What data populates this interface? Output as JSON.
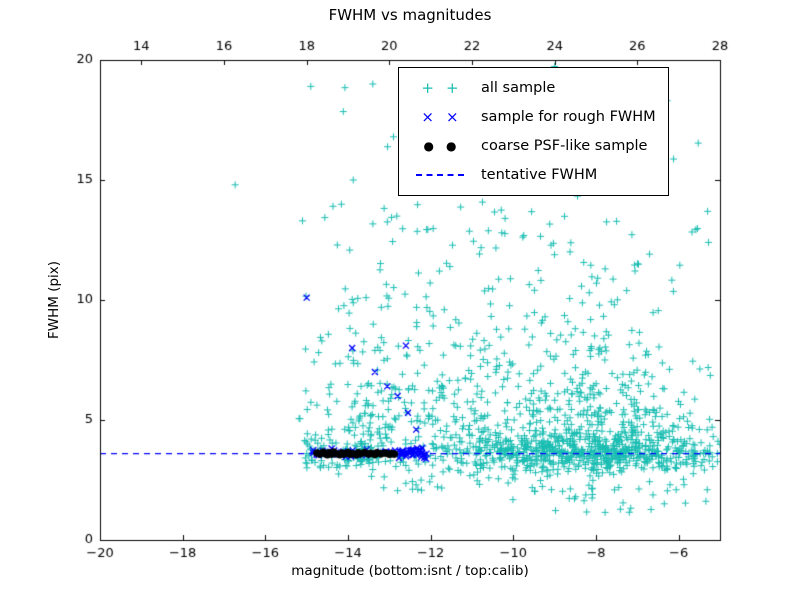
{
  "title": "FWHM vs magnitudes",
  "xlabel": "magnitude (bottom:isnt / top:calib)",
  "ylabel": "FWHM (pix)",
  "colors": {
    "all_sample": "#1abdb2",
    "rough": "#0000ff",
    "psf": "#000000",
    "line": "#0000ff",
    "axis": "#000000"
  },
  "axes": {
    "x_bottom": {
      "min": -20,
      "max": -5,
      "ticks": [
        {
          "v": -20,
          "label": "−20"
        },
        {
          "v": -18,
          "label": "−18"
        },
        {
          "v": -16,
          "label": "−16"
        },
        {
          "v": -14,
          "label": "−14"
        },
        {
          "v": -12,
          "label": "−12"
        },
        {
          "v": -10,
          "label": "−10"
        },
        {
          "v": -8,
          "label": "−8"
        },
        {
          "v": -6,
          "label": "−6"
        }
      ]
    },
    "x_top": {
      "min": 13,
      "max": 28,
      "ticks": [
        {
          "v": 14,
          "label": "14"
        },
        {
          "v": 16,
          "label": "16"
        },
        {
          "v": 18,
          "label": "18"
        },
        {
          "v": 20,
          "label": "20"
        },
        {
          "v": 22,
          "label": "22"
        },
        {
          "v": 24,
          "label": "24"
        },
        {
          "v": 26,
          "label": "26"
        },
        {
          "v": 28,
          "label": "28"
        }
      ]
    },
    "y": {
      "min": 0,
      "max": 20,
      "ticks": [
        {
          "v": 0,
          "label": "0"
        },
        {
          "v": 5,
          "label": "5"
        },
        {
          "v": 10,
          "label": "10"
        },
        {
          "v": 15,
          "label": "15"
        },
        {
          "v": 20,
          "label": "20"
        }
      ]
    }
  },
  "legend": {
    "items": [
      {
        "label": "all sample",
        "marker": "plus",
        "color_key": "all_sample"
      },
      {
        "label": "sample for rough FWHM",
        "marker": "x",
        "color_key": "rough"
      },
      {
        "label": "coarse PSF-like sample",
        "marker": "dot",
        "color_key": "psf"
      },
      {
        "label": "tentative FWHM",
        "marker": "dashed",
        "color_key": "line"
      }
    ]
  },
  "chart_data": {
    "type": "scatter",
    "title": "FWHM vs magnitudes",
    "xlabel": "magnitude (bottom:isnt / top:calib)",
    "ylabel": "FWHM (pix)",
    "xlim": [
      -20,
      -5
    ],
    "xlim_top": [
      13,
      28
    ],
    "ylim": [
      0,
      20
    ],
    "grid": false,
    "legend_position": "upper center-right",
    "tentative_fwhm": 3.6,
    "series": [
      {
        "name": "all sample",
        "marker": "plus",
        "color": "#1abdb2",
        "clusters": [
          {
            "n": 600,
            "x": {
              "d": "gauss",
              "p": [
                -8.2,
                1.6
              ],
              "clip": [
                -13.2,
                -4.85
              ]
            },
            "y": {
              "d": "gauss",
              "p": [
                3.6,
                0.35
              ],
              "clip": [
                2.3,
                4.6
              ]
            }
          },
          {
            "n": 430,
            "x": {
              "d": "gauss",
              "p": [
                -8.4,
                1.5
              ],
              "clip": [
                -12.6,
                -4.9
              ]
            },
            "y": {
              "d": "exp",
              "p": [
                4.1,
                2.1
              ],
              "clip": [
                4.1,
                19.8
              ]
            }
          },
          {
            "n": 230,
            "x": {
              "d": "uniform",
              "p": [
                -13.9,
                -10.6
              ]
            },
            "y": {
              "d": "exp",
              "p": [
                3.1,
                2.6
              ],
              "clip": [
                3.1,
                19.5
              ]
            }
          },
          {
            "n": 110,
            "x": {
              "d": "uniform",
              "p": [
                -15.2,
                -12.9
              ]
            },
            "y": {
              "d": "exp",
              "p": [
                3.0,
                3.0
              ],
              "clip": [
                3.0,
                19.2
              ]
            }
          },
          {
            "n": 90,
            "x": {
              "d": "gauss",
              "p": [
                -9.6,
                2.1
              ],
              "clip": [
                -14.6,
                -5.0
              ]
            },
            "y": {
              "d": "uniform",
              "p": [
                9.0,
                19.9
              ]
            }
          },
          {
            "n": 80,
            "x": {
              "d": "uniform",
              "p": [
                -13.3,
                -4.9
              ]
            },
            "y": {
              "d": "uniform",
              "p": [
                2.0,
                3.3
              ]
            }
          },
          {
            "n": 60,
            "x": {
              "d": "uniform",
              "p": [
                -15.1,
                -13.4
              ]
            },
            "y": {
              "d": "gauss",
              "p": [
                3.6,
                0.5
              ],
              "clip": [
                2.6,
                5.0
              ]
            }
          },
          {
            "n": 25,
            "x": {
              "d": "gauss",
              "p": [
                -7.6,
                1.3
              ],
              "clip": [
                -10.5,
                -5.0
              ]
            },
            "y": {
              "d": "uniform",
              "p": [
                1.1,
                2.2
              ]
            }
          }
        ],
        "points": [
          [
            -16.73,
            14.8
          ],
          [
            -14.9,
            18.9
          ],
          [
            -13.4,
            19.0
          ],
          [
            -12.4,
            17.6
          ],
          [
            -12.9,
            16.8
          ],
          [
            -11.9,
            18.8
          ],
          [
            -10.9,
            19.2
          ],
          [
            -9.7,
            19.4
          ],
          [
            -8.9,
            18.6
          ],
          [
            -9.3,
            17.4
          ],
          [
            -10.2,
            13.4
          ]
        ]
      },
      {
        "name": "sample for rough FWHM",
        "marker": "x",
        "color": "#0000ff",
        "clusters": [
          {
            "n": 60,
            "x": {
              "d": "uniform",
              "p": [
                -14.85,
                -12.15
              ]
            },
            "y": {
              "d": "gauss",
              "p": [
                3.62,
                0.1
              ],
              "clip": [
                3.35,
                3.95
              ]
            }
          },
          {
            "n": 18,
            "x": {
              "d": "uniform",
              "p": [
                -12.7,
                -12.1
              ]
            },
            "y": {
              "d": "gauss",
              "p": [
                3.6,
                0.12
              ],
              "clip": [
                3.3,
                3.95
              ]
            }
          }
        ],
        "points": [
          [
            -15.0,
            10.1
          ],
          [
            -13.9,
            8.0
          ],
          [
            -12.6,
            8.1
          ],
          [
            -13.35,
            7.0
          ],
          [
            -13.05,
            6.4
          ],
          [
            -12.8,
            6.0
          ],
          [
            -12.55,
            5.3
          ],
          [
            -12.35,
            4.6
          ]
        ]
      },
      {
        "name": "coarse PSF-like sample",
        "marker": "dot",
        "color": "#000000",
        "points": [
          [
            -14.75,
            3.62
          ],
          [
            -14.68,
            3.58
          ],
          [
            -14.6,
            3.65
          ],
          [
            -14.55,
            3.6
          ],
          [
            -14.5,
            3.55
          ],
          [
            -14.45,
            3.63
          ],
          [
            -14.4,
            3.58
          ],
          [
            -14.35,
            3.66
          ],
          [
            -14.3,
            3.6
          ],
          [
            -14.2,
            3.55
          ],
          [
            -14.15,
            3.62
          ],
          [
            -14.1,
            3.58
          ],
          [
            -14.0,
            3.64
          ],
          [
            -13.95,
            3.57
          ],
          [
            -13.9,
            3.6
          ],
          [
            -13.8,
            3.55
          ],
          [
            -13.75,
            3.63
          ],
          [
            -13.7,
            3.59
          ],
          [
            -13.6,
            3.64
          ],
          [
            -13.5,
            3.58
          ],
          [
            -13.45,
            3.61
          ],
          [
            -13.35,
            3.56
          ],
          [
            -13.3,
            3.63
          ],
          [
            -13.2,
            3.59
          ],
          [
            -13.1,
            3.62
          ],
          [
            -13.0,
            3.57
          ],
          [
            -12.95,
            3.6
          ],
          [
            -12.88,
            3.58
          ]
        ]
      }
    ]
  }
}
